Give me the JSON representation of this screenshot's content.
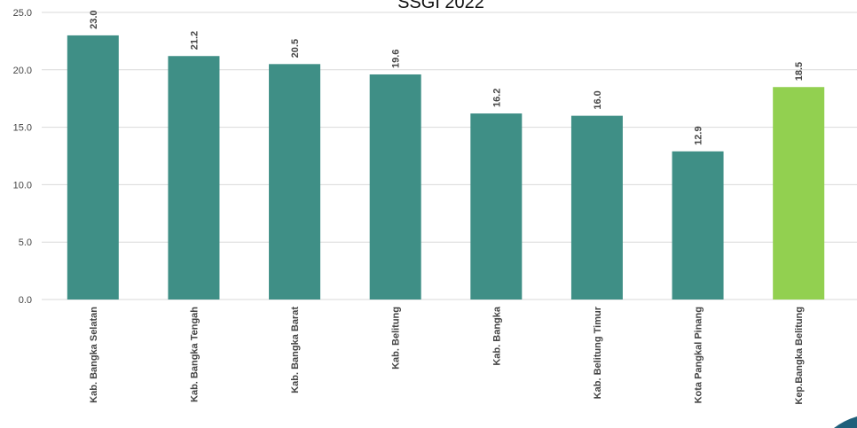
{
  "chart_data": {
    "type": "bar",
    "title": "SSGI 2022",
    "categories": [
      "Kab. Bangka Selatan",
      "Kab. Bangka Tengah",
      "Kab. Bangka Barat",
      "Kab. Belitung",
      "Kab. Bangka",
      "Kab. Belitung Timur",
      "Kota Pangkal Pinang",
      "Kep.Bangka Belitung"
    ],
    "values": [
      23.0,
      21.2,
      20.5,
      19.6,
      16.2,
      16.0,
      12.9,
      18.5
    ],
    "data_labels": [
      "23.0",
      "21.2",
      "20.5",
      "19.6",
      "16.2",
      "16.0",
      "12.9",
      "18.5"
    ],
    "y_ticks": [
      "0.0",
      "5.0",
      "10.0",
      "15.0",
      "20.0",
      "25.0"
    ],
    "ylim": [
      0,
      25
    ],
    "grid": true,
    "colors": {
      "bar": "#3f8f86",
      "highlight": "#92d050",
      "highlight_index": 7,
      "corner_accent": "#1f5f7a"
    }
  }
}
